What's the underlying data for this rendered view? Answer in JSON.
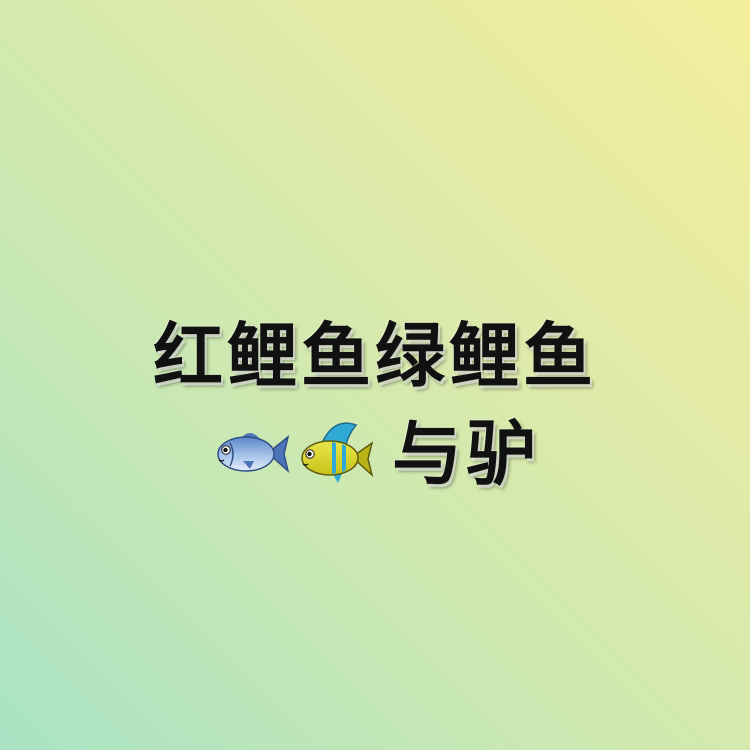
{
  "title_line": "红鲤鱼绿鲤鱼",
  "second_line": {
    "icons": [
      "fish-icon",
      "tropical-fish-icon"
    ],
    "text": "与驴"
  },
  "colors": {
    "text": "#111111",
    "gradient_start": "#a9e3c4",
    "gradient_end": "#f3ee9c"
  }
}
